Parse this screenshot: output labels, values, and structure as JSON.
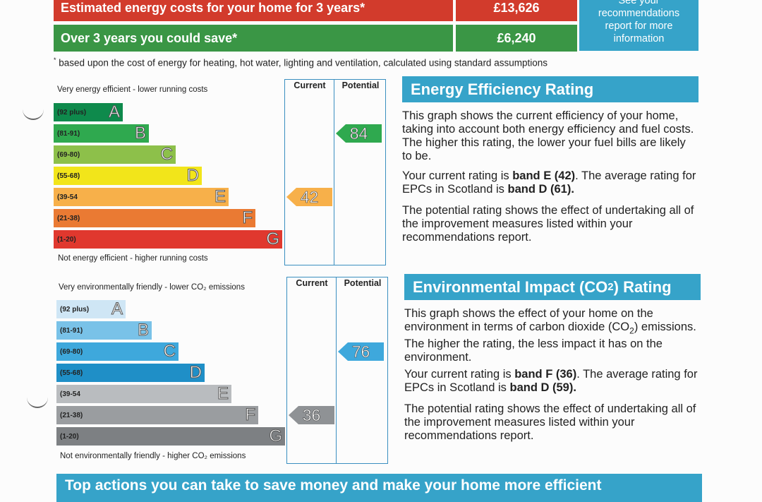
{
  "costs": {
    "estimated_label": "Estimated energy costs for your home for 3 years*",
    "estimated_value": "£13,626",
    "save_label": "Over 3 years you could save*",
    "save_value": "£6,240",
    "info_box": [
      "See your",
      "recommendations",
      "report for more",
      "information"
    ],
    "footnote_mark": "*",
    "footnote": "based upon the cost of energy for heating, hot water, lighting and ventilation, calculated using standard assumptions"
  },
  "energy_chart": {
    "top_caption": "Very energy efficient - lower running costs",
    "bottom_caption": "Not energy efficient - higher running costs",
    "col_current": "Current",
    "col_potential": "Potential",
    "current_value": "42",
    "potential_value": "84",
    "bands": [
      {
        "range": "(92 plus)",
        "letter": "A",
        "color": "#0e8a4c"
      },
      {
        "range": "(81-91)",
        "letter": "B",
        "color": "#2fa94f"
      },
      {
        "range": "(69-80)",
        "letter": "C",
        "color": "#8dc04a"
      },
      {
        "range": "(55-68)",
        "letter": "D",
        "color": "#f2e51a"
      },
      {
        "range": "(39-54",
        "letter": "E",
        "color": "#f7b04a"
      },
      {
        "range": "(21-38)",
        "letter": "F",
        "color": "#ea7a33"
      },
      {
        "range": "(1-20)",
        "letter": "G",
        "color": "#e0382e"
      }
    ],
    "current_color": "#f7b04a",
    "potential_color": "#2fa94f"
  },
  "env_chart": {
    "top_caption": "Very environmentally friendly - lower CO₂ emissions",
    "bottom_caption": "Not environmentally friendly - higher CO₂ emissions",
    "col_current": "Current",
    "col_potential": "Potential",
    "current_value": "36",
    "potential_value": "76",
    "bands": [
      {
        "range": "(92 plus)",
        "letter": "A",
        "color": "#cfe6f5"
      },
      {
        "range": "(81-91)",
        "letter": "B",
        "color": "#79c2e8"
      },
      {
        "range": "(69-80)",
        "letter": "C",
        "color": "#3ea8dc"
      },
      {
        "range": "(55-68)",
        "letter": "D",
        "color": "#1f8fc7"
      },
      {
        "range": "(39-54",
        "letter": "E",
        "color": "#b9bcbf"
      },
      {
        "range": "(21-38)",
        "letter": "F",
        "color": "#9a9da0"
      },
      {
        "range": "(1-20)",
        "letter": "G",
        "color": "#7d8083"
      }
    ],
    "current_color": "#8f9295",
    "potential_color": "#3ea8dc"
  },
  "energy_text": {
    "heading": "Energy Efficiency Rating",
    "p1": "This graph shows the current efficiency of your home, taking into account both energy efficiency and fuel costs. The higher this rating, the lower your fuel bills are likely to be.",
    "p2_pre": "Your current rating is ",
    "p2_band": "band E (42)",
    "p2_mid": ". The average rating for EPCs in Scotland is ",
    "p2_avg": "band D (61).",
    "p3": "The potential rating shows the effect of undertaking all of the improvement measures listed within your recommendations report."
  },
  "env_text": {
    "heading_pre": "Environmental Impact (CO",
    "heading_sub": "2",
    "heading_post": ") Rating",
    "p1_pre": "This graph shows the effect of your home on the environment in terms of carbon dioxide (CO",
    "p1_sub": "2",
    "p1_post": ") emissions. The higher the rating, the less impact it has on the environment.",
    "p2_pre": "Your current rating is ",
    "p2_band": "band F (36)",
    "p2_mid": ". The average rating for EPCs in Scotland is ",
    "p2_avg": "band D (59).",
    "p3": "The potential rating shows the effect of undertaking all of the improvement measures listed within your recommendations report."
  },
  "bottom_heading": "Top actions you can take to save money and make your home more efficient"
}
